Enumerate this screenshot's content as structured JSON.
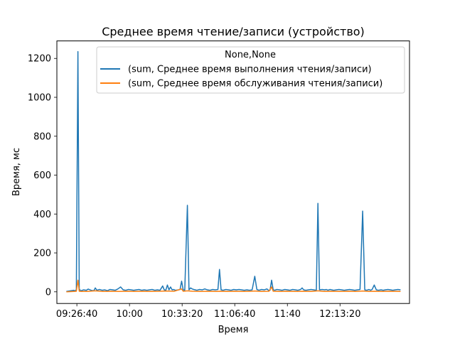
{
  "chart_data": {
    "type": "line",
    "title": "Среднее время чтение/записи (устройство)",
    "xlabel": "Время",
    "ylabel": "Время, мс",
    "x_ticks": [
      {
        "label": "09:26:40",
        "t": 34000
      },
      {
        "label": "10:00",
        "t": 36000
      },
      {
        "label": "10:33:20",
        "t": 38000
      },
      {
        "label": "11:06:40",
        "t": 40000
      },
      {
        "label": "11:40",
        "t": 42000
      },
      {
        "label": "12:13:20",
        "t": 44000
      }
    ],
    "xlim": [
      33240,
      46640
    ],
    "ylim": [
      -60,
      1290
    ],
    "y_ticks": [
      0,
      200,
      400,
      600,
      800,
      1000,
      1200
    ],
    "grid": false,
    "legend": {
      "title": "None,None",
      "placement": "top-right",
      "entries": [
        "(sum, Среднее время выполнения чтения/записи)",
        "(sum, Среднее время обслуживания чтения/записи)"
      ]
    },
    "series": [
      {
        "name": "(sum, Среднее время выполнения чтения/записи)",
        "color": "#1f77b4",
        "points": [
          [
            33600,
            2
          ],
          [
            33880,
            8
          ],
          [
            33930,
            5
          ],
          [
            33980,
            10
          ],
          [
            34040,
            1235
          ],
          [
            34090,
            15
          ],
          [
            34140,
            5
          ],
          [
            34250,
            10
          ],
          [
            34360,
            8
          ],
          [
            34430,
            14
          ],
          [
            34540,
            8
          ],
          [
            34640,
            5
          ],
          [
            34700,
            20
          ],
          [
            34760,
            8
          ],
          [
            34860,
            12
          ],
          [
            34960,
            8
          ],
          [
            35060,
            10
          ],
          [
            35160,
            6
          ],
          [
            35260,
            12
          ],
          [
            35360,
            10
          ],
          [
            35460,
            8
          ],
          [
            35560,
            15
          ],
          [
            35660,
            25
          ],
          [
            35760,
            10
          ],
          [
            35860,
            8
          ],
          [
            35960,
            12
          ],
          [
            36060,
            10
          ],
          [
            36160,
            8
          ],
          [
            36260,
            10
          ],
          [
            36360,
            12
          ],
          [
            36460,
            8
          ],
          [
            36560,
            10
          ],
          [
            36660,
            8
          ],
          [
            36760,
            10
          ],
          [
            36860,
            12
          ],
          [
            36960,
            8
          ],
          [
            37060,
            10
          ],
          [
            37160,
            8
          ],
          [
            37260,
            30
          ],
          [
            37320,
            10
          ],
          [
            37380,
            8
          ],
          [
            37440,
            35
          ],
          [
            37500,
            10
          ],
          [
            37560,
            25
          ],
          [
            37620,
            10
          ],
          [
            37680,
            12
          ],
          [
            37740,
            8
          ],
          [
            37860,
            10
          ],
          [
            37920,
            12
          ],
          [
            37980,
            55
          ],
          [
            38040,
            10
          ],
          [
            38100,
            8
          ],
          [
            38200,
            445
          ],
          [
            38260,
            10
          ],
          [
            38320,
            20
          ],
          [
            38380,
            15
          ],
          [
            38440,
            12
          ],
          [
            38500,
            10
          ],
          [
            38560,
            8
          ],
          [
            38660,
            12
          ],
          [
            38760,
            10
          ],
          [
            38860,
            15
          ],
          [
            38960,
            10
          ],
          [
            39060,
            8
          ],
          [
            39160,
            12
          ],
          [
            39260,
            10
          ],
          [
            39360,
            12
          ],
          [
            39420,
            115
          ],
          [
            39480,
            10
          ],
          [
            39560,
            8
          ],
          [
            39660,
            12
          ],
          [
            39760,
            10
          ],
          [
            39860,
            8
          ],
          [
            39960,
            12
          ],
          [
            40060,
            10
          ],
          [
            40160,
            12
          ],
          [
            40260,
            10
          ],
          [
            40360,
            8
          ],
          [
            40460,
            10
          ],
          [
            40560,
            8
          ],
          [
            40660,
            10
          ],
          [
            40760,
            80
          ],
          [
            40840,
            12
          ],
          [
            40920,
            8
          ],
          [
            41020,
            12
          ],
          [
            41120,
            10
          ],
          [
            41220,
            15
          ],
          [
            41280,
            8
          ],
          [
            41340,
            8
          ],
          [
            41400,
            60
          ],
          [
            41460,
            10
          ],
          [
            41520,
            8
          ],
          [
            41600,
            12
          ],
          [
            41700,
            10
          ],
          [
            41800,
            8
          ],
          [
            41900,
            12
          ],
          [
            42000,
            10
          ],
          [
            42100,
            8
          ],
          [
            42200,
            12
          ],
          [
            42300,
            10
          ],
          [
            42400,
            8
          ],
          [
            42500,
            12
          ],
          [
            42560,
            20
          ],
          [
            42620,
            10
          ],
          [
            42700,
            8
          ],
          [
            42800,
            10
          ],
          [
            42900,
            12
          ],
          [
            43000,
            10
          ],
          [
            43100,
            8
          ],
          [
            43160,
            455
          ],
          [
            43220,
            10
          ],
          [
            43320,
            12
          ],
          [
            43420,
            10
          ],
          [
            43480,
            12
          ],
          [
            43540,
            8
          ],
          [
            43620,
            12
          ],
          [
            43680,
            10
          ],
          [
            43760,
            8
          ],
          [
            43860,
            10
          ],
          [
            43960,
            12
          ],
          [
            44060,
            10
          ],
          [
            44160,
            8
          ],
          [
            44260,
            10
          ],
          [
            44360,
            12
          ],
          [
            44460,
            10
          ],
          [
            44560,
            8
          ],
          [
            44660,
            10
          ],
          [
            44760,
            12
          ],
          [
            44860,
            415
          ],
          [
            44940,
            10
          ],
          [
            45020,
            8
          ],
          [
            45100,
            12
          ],
          [
            45160,
            8
          ],
          [
            45220,
            12
          ],
          [
            45300,
            35
          ],
          [
            45380,
            10
          ],
          [
            45460,
            8
          ],
          [
            45560,
            10
          ],
          [
            45640,
            8
          ],
          [
            45720,
            10
          ],
          [
            45820,
            12
          ],
          [
            45920,
            10
          ],
          [
            46000,
            8
          ],
          [
            46100,
            10
          ],
          [
            46200,
            12
          ],
          [
            46300,
            10
          ]
        ]
      },
      {
        "name": "(sum, Среднее время обслуживания чтения/записи)",
        "color": "#ff7f0e",
        "points": [
          [
            33600,
            0
          ],
          [
            33880,
            2
          ],
          [
            33980,
            3
          ],
          [
            34040,
            60
          ],
          [
            34090,
            3
          ],
          [
            34200,
            2
          ],
          [
            34400,
            2
          ],
          [
            34700,
            5
          ],
          [
            35000,
            2
          ],
          [
            35300,
            3
          ],
          [
            35600,
            2
          ],
          [
            35900,
            3
          ],
          [
            36200,
            2
          ],
          [
            36500,
            3
          ],
          [
            36800,
            2
          ],
          [
            37100,
            3
          ],
          [
            37400,
            4
          ],
          [
            37700,
            3
          ],
          [
            37980,
            15
          ],
          [
            38040,
            3
          ],
          [
            38200,
            5
          ],
          [
            38400,
            3
          ],
          [
            38700,
            2
          ],
          [
            39000,
            3
          ],
          [
            39300,
            2
          ],
          [
            39420,
            3
          ],
          [
            39700,
            2
          ],
          [
            40000,
            3
          ],
          [
            40300,
            2
          ],
          [
            40600,
            3
          ],
          [
            40760,
            4
          ],
          [
            41000,
            2
          ],
          [
            41300,
            3
          ],
          [
            41400,
            25
          ],
          [
            41460,
            3
          ],
          [
            41700,
            2
          ],
          [
            42000,
            3
          ],
          [
            42300,
            2
          ],
          [
            42600,
            3
          ],
          [
            42900,
            2
          ],
          [
            43160,
            5
          ],
          [
            43400,
            2
          ],
          [
            43700,
            3
          ],
          [
            44000,
            2
          ],
          [
            44300,
            3
          ],
          [
            44600,
            2
          ],
          [
            44860,
            4
          ],
          [
            45100,
            2
          ],
          [
            45300,
            3
          ],
          [
            45600,
            2
          ],
          [
            45900,
            3
          ],
          [
            46300,
            2
          ]
        ]
      }
    ]
  }
}
